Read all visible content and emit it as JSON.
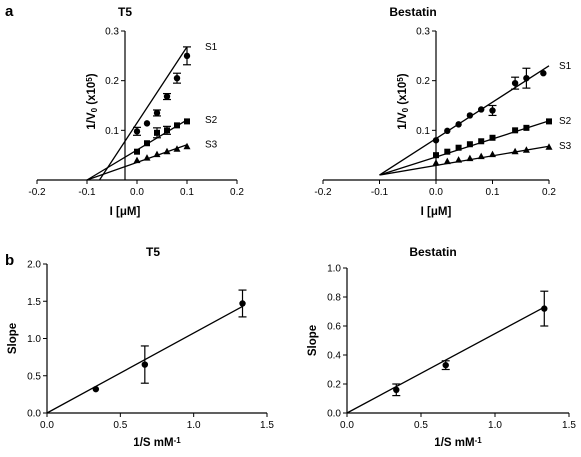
{
  "figure": {
    "panel_a_label": "a",
    "panel_b_label": "b"
  },
  "chart_data": [
    {
      "type": "scatter",
      "title": "T5",
      "xlabel": "I [μM]",
      "ylabel_main": "1/V",
      "ylabel_sub": "0",
      "ylabel_paren": " (x10",
      "ylabel_sup": "5",
      "ylabel_close": ")",
      "xlim": [
        -0.2,
        0.2
      ],
      "ylim": [
        0,
        0.3
      ],
      "xticks": [
        -0.2,
        -0.1,
        0.0,
        0.1,
        0.2
      ],
      "xtick_labels": [
        "-0.2",
        "-0.1",
        "0.0",
        "0.1",
        "0.2"
      ],
      "yticks": [
        0.1,
        0.2,
        0.3
      ],
      "ytick_labels": [
        "0.1",
        "0.2",
        "0.3"
      ],
      "series": [
        {
          "name": "S1",
          "marker": "circle",
          "x": [
            0,
            0.02,
            0.04,
            0.06,
            0.08,
            0.1
          ],
          "y": [
            0.098,
            0.114,
            0.135,
            0.168,
            0.205,
            0.25
          ],
          "err": [
            0.008,
            0.005,
            0.006,
            0.006,
            0.01,
            0.018
          ],
          "fit": [
            [
              -0.075,
              0
            ],
            [
              0.1,
              0.268
            ]
          ]
        },
        {
          "name": "S2",
          "marker": "square",
          "x": [
            0,
            0.02,
            0.04,
            0.06,
            0.08,
            0.1
          ],
          "y": [
            0.057,
            0.074,
            0.095,
            0.1,
            0.11,
            0.118
          ],
          "err": [
            0.005,
            0.004,
            0.01,
            0.008,
            0.005,
            0.004
          ],
          "fit": [
            [
              -0.1,
              0
            ],
            [
              0.1,
              0.121
            ]
          ]
        },
        {
          "name": "S3",
          "marker": "triangle",
          "x": [
            0,
            0.02,
            0.04,
            0.06,
            0.08,
            0.1
          ],
          "y": [
            0.04,
            0.045,
            0.052,
            0.058,
            0.063,
            0.068
          ],
          "err": [
            0.003,
            0.003,
            0.003,
            0.003,
            0.003,
            0.003
          ],
          "fit": [
            [
              -0.1,
              0
            ],
            [
              0.1,
              0.071
            ]
          ]
        }
      ]
    },
    {
      "type": "scatter",
      "title": "Bestatin",
      "xlabel": "I [μM]",
      "ylabel_main": "1/V",
      "ylabel_sub": "0",
      "ylabel_paren": " (x10",
      "ylabel_sup": "5",
      "ylabel_close": ")",
      "xlim": [
        -0.2,
        0.2
      ],
      "ylim": [
        0,
        0.3
      ],
      "xticks": [
        -0.2,
        -0.1,
        0.0,
        0.1,
        0.2
      ],
      "xtick_labels": [
        "-0.2",
        "-0.1",
        "0.0",
        "0.1",
        "0.2"
      ],
      "yticks": [
        0.1,
        0.2,
        0.3
      ],
      "ytick_labels": [
        "0.1",
        "0.2",
        "0.3"
      ],
      "series": [
        {
          "name": "S1",
          "marker": "circle",
          "x": [
            0,
            0.02,
            0.04,
            0.06,
            0.08,
            0.1,
            0.14,
            0.16,
            0.19
          ],
          "y": [
            0.08,
            0.099,
            0.112,
            0.13,
            0.142,
            0.14,
            0.195,
            0.205,
            0.215
          ],
          "err": [
            0.005,
            0.004,
            0.005,
            0.005,
            0.005,
            0.01,
            0.012,
            0.02,
            0.004
          ],
          "fit": [
            [
              -0.1,
              0.01
            ],
            [
              0.2,
              0.23
            ]
          ]
        },
        {
          "name": "S2",
          "marker": "square",
          "x": [
            0,
            0.02,
            0.04,
            0.06,
            0.08,
            0.1,
            0.14,
            0.16,
            0.2
          ],
          "y": [
            0.05,
            0.057,
            0.065,
            0.072,
            0.078,
            0.085,
            0.1,
            0.105,
            0.118
          ],
          "err": [
            0.003,
            0.003,
            0.003,
            0.004,
            0.004,
            0.004,
            0.004,
            0.004,
            0.004
          ],
          "fit": [
            [
              -0.1,
              0.01
            ],
            [
              0.2,
              0.119
            ]
          ]
        },
        {
          "name": "S3",
          "marker": "triangle",
          "x": [
            0,
            0.02,
            0.04,
            0.06,
            0.08,
            0.1,
            0.14,
            0.16,
            0.2
          ],
          "y": [
            0.035,
            0.038,
            0.041,
            0.044,
            0.048,
            0.052,
            0.058,
            0.061,
            0.067
          ],
          "err": [
            0.003,
            0.003,
            0.003,
            0.003,
            0.003,
            0.003,
            0.003,
            0.003,
            0.003
          ],
          "fit": [
            [
              -0.1,
              0.01
            ],
            [
              0.2,
              0.068
            ]
          ]
        }
      ]
    },
    {
      "type": "scatter",
      "title": "T5",
      "xlabel": "1/S mM",
      "xlabel_sup": "-1",
      "ylabel": "Slope",
      "xlim": [
        0,
        1.5
      ],
      "ylim": [
        0,
        2.0
      ],
      "xticks": [
        0,
        0.5,
        1.0,
        1.5
      ],
      "xtick_labels": [
        "0.0",
        "0.5",
        "1.0",
        "1.5"
      ],
      "yticks": [
        0,
        0.5,
        1.0,
        1.5,
        2.0
      ],
      "ytick_labels": [
        "0.0",
        "0.5",
        "1.0",
        "1.5",
        "2.0"
      ],
      "series": [
        {
          "x": [
            0.333,
            0.667,
            1.333
          ],
          "y": [
            0.32,
            0.65,
            1.47
          ],
          "err": [
            0.03,
            0.25,
            0.18
          ],
          "fit": [
            [
              0,
              0
            ],
            [
              1.333,
              1.43
            ]
          ]
        }
      ]
    },
    {
      "type": "scatter",
      "title": "Bestatin",
      "xlabel": "1/S mM",
      "xlabel_sup": "-1",
      "ylabel": "Slope",
      "xlim": [
        0,
        1.5
      ],
      "ylim": [
        0,
        1.0
      ],
      "xticks": [
        0,
        0.5,
        1.0,
        1.5
      ],
      "xtick_labels": [
        "0.0",
        "0.5",
        "1.0",
        "1.5"
      ],
      "yticks": [
        0,
        0.2,
        0.4,
        0.6,
        0.8,
        1.0
      ],
      "ytick_labels": [
        "0.0",
        "0.2",
        "0.4",
        "0.6",
        "0.8",
        "1.0"
      ],
      "series": [
        {
          "x": [
            0.333,
            0.667,
            1.333
          ],
          "y": [
            0.16,
            0.33,
            0.72
          ],
          "err": [
            0.04,
            0.03,
            0.12
          ],
          "fit": [
            [
              0,
              0
            ],
            [
              1.333,
              0.73
            ]
          ]
        }
      ]
    }
  ]
}
